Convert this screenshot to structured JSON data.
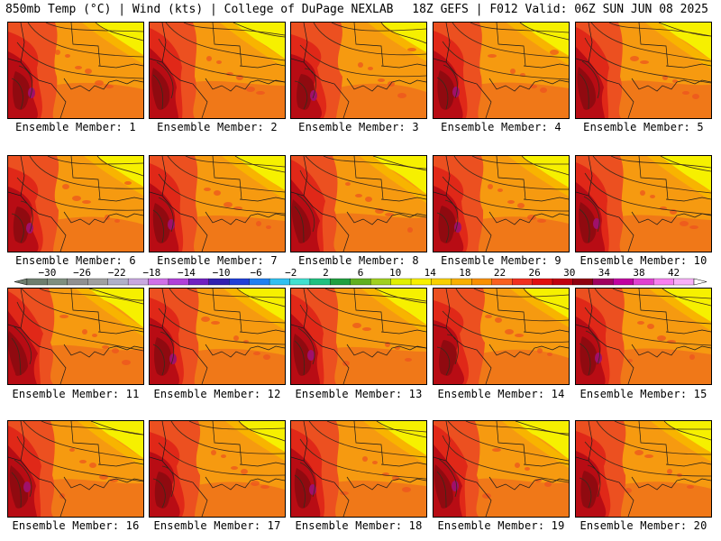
{
  "header": {
    "left": "850mb Temp (°C) | Wind (kts) | College of DuPage NEXLAB",
    "right": "18Z GEFS | F012 Valid: 06Z SUN JUN 08 2025"
  },
  "panels": [
    {
      "label": "Ensemble Member: 1",
      "member": 1
    },
    {
      "label": "Ensemble Member: 2",
      "member": 2
    },
    {
      "label": "Ensemble Member: 3",
      "member": 3
    },
    {
      "label": "Ensemble Member: 4",
      "member": 4
    },
    {
      "label": "Ensemble Member: 5",
      "member": 5
    },
    {
      "label": "Ensemble Member: 6",
      "member": 6
    },
    {
      "label": "Ensemble Member: 7",
      "member": 7
    },
    {
      "label": "Ensemble Member: 8",
      "member": 8
    },
    {
      "label": "Ensemble Member: 9",
      "member": 9
    },
    {
      "label": "Ensemble Member: 10",
      "member": 10
    },
    {
      "label": "Ensemble Member: 11",
      "member": 11
    },
    {
      "label": "Ensemble Member: 12",
      "member": 12
    },
    {
      "label": "Ensemble Member: 13",
      "member": 13
    },
    {
      "label": "Ensemble Member: 14",
      "member": 14
    },
    {
      "label": "Ensemble Member: 15",
      "member": 15
    },
    {
      "label": "Ensemble Member: 16",
      "member": 16
    },
    {
      "label": "Ensemble Member: 17",
      "member": 17
    },
    {
      "label": "Ensemble Member: 18",
      "member": 18
    },
    {
      "label": "Ensemble Member: 19",
      "member": 19
    },
    {
      "label": "Ensemble Member: 20",
      "member": 20
    }
  ],
  "colorbar": {
    "ticks": [
      "−30",
      "−26",
      "−22",
      "−18",
      "−14",
      "−10",
      "−6",
      "−2",
      "2",
      "6",
      "10",
      "14",
      "18",
      "22",
      "26",
      "30",
      "34",
      "38",
      "42"
    ],
    "colors": [
      "#6e7e6e",
      "#7f8f7f",
      "#909090",
      "#a0a0a0",
      "#b0b0c8",
      "#c8a8e0",
      "#d070e8",
      "#b040d8",
      "#7020c0",
      "#3020b0",
      "#2040d8",
      "#2080f0",
      "#30c0f0",
      "#40e0d0",
      "#20c080",
      "#20a040",
      "#60b020",
      "#a0d020",
      "#e0f000",
      "#f8f000",
      "#f8d000",
      "#f8b000",
      "#f89000",
      "#f86020",
      "#f03020",
      "#e01010",
      "#c00010",
      "#900010",
      "#a00060",
      "#c000a0",
      "#e040d0",
      "#f880f0",
      "#f8b0f8"
    ]
  },
  "palette": {
    "yellow": "#f6f000",
    "light_orange": "#f8b400",
    "orange": "#f69a10",
    "dark_orange": "#f07818",
    "red_orange": "#ec5020",
    "red": "#e02818",
    "dark_red": "#b80c14",
    "maroon": "#900a10",
    "purple": "#a0106a"
  }
}
